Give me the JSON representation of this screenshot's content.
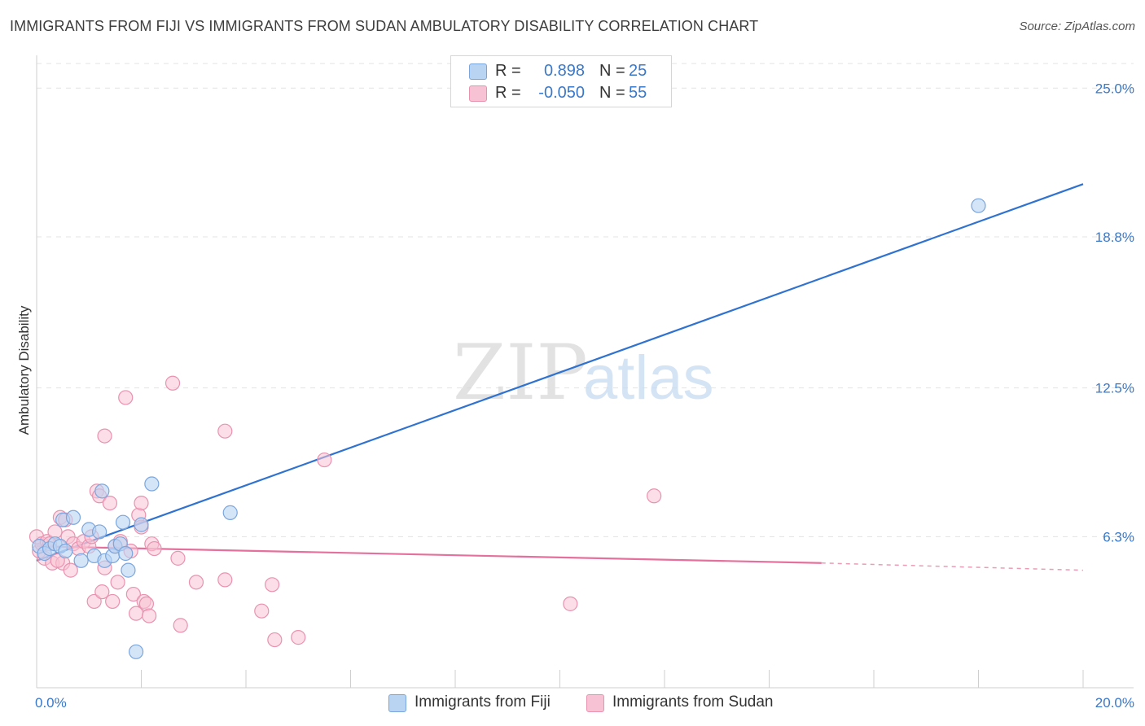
{
  "title": "IMMIGRANTS FROM FIJI VS IMMIGRANTS FROM SUDAN AMBULATORY DISABILITY CORRELATION CHART",
  "source": "Source: ZipAtlas.com",
  "watermark": {
    "zip": "ZIP",
    "atlas": "atlas"
  },
  "legend": {
    "fiji": {
      "r_label": "R =",
      "r_value": "0.898",
      "n_label": "N =",
      "n_value": "25"
    },
    "sudan": {
      "r_label": "R =",
      "r_value": "-0.050",
      "n_label": "N =",
      "n_value": "55"
    }
  },
  "colors": {
    "fiji_fill": "#b9d3f3",
    "fiji_stroke": "#7aa6dd",
    "fiji_line": "#2f72cf",
    "sudan_fill": "#f7c3d4",
    "sudan_stroke": "#e992b0",
    "sudan_line": "#e4709b",
    "tick_text": "#3a78c8",
    "grid": "#e3e3e3"
  },
  "chart_data": {
    "type": "scatter",
    "title": "IMMIGRANTS FROM FIJI VS IMMIGRANTS FROM SUDAN AMBULATORY DISABILITY CORRELATION CHART",
    "xlabel": "",
    "ylabel": "Ambulatory Disability",
    "xlim": [
      0,
      20
    ],
    "ylim": [
      0,
      26.3
    ],
    "x_tick_labels": [
      "0.0%",
      "20.0%"
    ],
    "y_ticks": [
      6.3,
      12.5,
      18.8,
      25.0
    ],
    "y_tick_labels": [
      "6.3%",
      "12.5%",
      "18.8%",
      "25.0%"
    ],
    "grid": true,
    "legend_position": "top-center",
    "series": [
      {
        "name": "Immigrants from Fiji",
        "points": [
          [
            0.05,
            5.9
          ],
          [
            0.15,
            5.6
          ],
          [
            0.25,
            5.8
          ],
          [
            0.35,
            6.0
          ],
          [
            0.45,
            5.9
          ],
          [
            0.5,
            7.0
          ],
          [
            0.55,
            5.7
          ],
          [
            0.7,
            7.1
          ],
          [
            0.85,
            5.3
          ],
          [
            1.0,
            6.6
          ],
          [
            1.1,
            5.5
          ],
          [
            1.2,
            6.5
          ],
          [
            1.25,
            8.2
          ],
          [
            1.3,
            5.3
          ],
          [
            1.45,
            5.5
          ],
          [
            1.5,
            5.9
          ],
          [
            1.6,
            6.0
          ],
          [
            1.65,
            6.9
          ],
          [
            1.7,
            5.6
          ],
          [
            1.75,
            4.9
          ],
          [
            1.9,
            1.5
          ],
          [
            2.0,
            6.8
          ],
          [
            2.2,
            8.5
          ],
          [
            3.7,
            7.3
          ],
          [
            18.0,
            20.1
          ]
        ],
        "trend": {
          "x": [
            0,
            20
          ],
          "y": [
            5.3,
            21.0
          ]
        }
      },
      {
        "name": "Immigrants from Sudan",
        "points": [
          [
            0.0,
            6.3
          ],
          [
            0.05,
            5.7
          ],
          [
            0.1,
            6.0
          ],
          [
            0.15,
            5.4
          ],
          [
            0.2,
            6.1
          ],
          [
            0.3,
            5.2
          ],
          [
            0.35,
            6.5
          ],
          [
            0.45,
            7.1
          ],
          [
            0.5,
            5.2
          ],
          [
            0.55,
            7.0
          ],
          [
            0.6,
            6.3
          ],
          [
            0.65,
            4.9
          ],
          [
            0.7,
            6.0
          ],
          [
            0.8,
            5.8
          ],
          [
            0.9,
            6.1
          ],
          [
            1.0,
            5.9
          ],
          [
            1.05,
            6.3
          ],
          [
            1.1,
            3.6
          ],
          [
            1.15,
            8.2
          ],
          [
            1.2,
            8.0
          ],
          [
            1.25,
            4.0
          ],
          [
            1.3,
            10.5
          ],
          [
            1.3,
            5.0
          ],
          [
            1.4,
            7.7
          ],
          [
            1.45,
            3.6
          ],
          [
            1.5,
            5.9
          ],
          [
            1.55,
            4.4
          ],
          [
            1.6,
            6.1
          ],
          [
            1.7,
            12.1
          ],
          [
            1.8,
            5.7
          ],
          [
            1.85,
            3.9
          ],
          [
            1.9,
            3.1
          ],
          [
            1.95,
            7.2
          ],
          [
            2.0,
            6.7
          ],
          [
            2.0,
            7.7
          ],
          [
            2.05,
            3.6
          ],
          [
            2.1,
            3.5
          ],
          [
            2.15,
            3.0
          ],
          [
            2.2,
            6.0
          ],
          [
            2.25,
            5.8
          ],
          [
            2.6,
            12.7
          ],
          [
            2.7,
            5.4
          ],
          [
            2.75,
            2.6
          ],
          [
            3.05,
            4.4
          ],
          [
            3.6,
            4.5
          ],
          [
            3.6,
            10.7
          ],
          [
            4.3,
            3.2
          ],
          [
            4.5,
            4.3
          ],
          [
            4.55,
            2.0
          ],
          [
            5.0,
            2.1
          ],
          [
            5.5,
            9.5
          ],
          [
            10.2,
            3.5
          ],
          [
            11.8,
            8.0
          ],
          [
            0.25,
            6.0
          ],
          [
            0.4,
            5.3
          ]
        ],
        "trend": {
          "x": [
            0,
            15
          ],
          "y": [
            5.9,
            5.2
          ]
        },
        "trend_extension": {
          "x": [
            15,
            20
          ],
          "y": [
            5.2,
            4.9
          ]
        }
      }
    ]
  },
  "bottom_legend": {
    "fiji_label": "Immigrants from Fiji",
    "sudan_label": "Immigrants from Sudan"
  }
}
